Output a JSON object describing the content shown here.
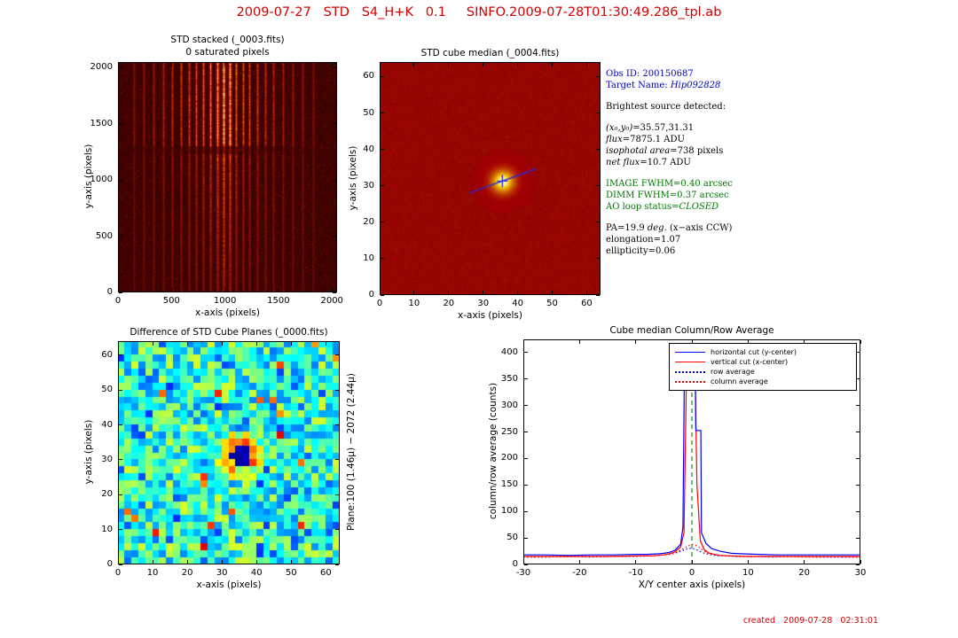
{
  "page": {
    "title": "2009-07-27   STD   S4_H+K   0.1     SINFO.2009-07-28T01:30:49.286_tpl.ab",
    "footer": "created   2009-07-28   02:31:01",
    "title_color": "#d40000"
  },
  "info_panel": {
    "lines": [
      {
        "color": "#0000bb",
        "segments": [
          {
            "t": "Obs ID: 200150687"
          }
        ]
      },
      {
        "color": "#0000bb",
        "segments": [
          {
            "t": "Target Name: "
          },
          {
            "t": "Hip092828",
            "i": true
          }
        ]
      },
      {
        "segments": []
      },
      {
        "color": "#000000",
        "segments": [
          {
            "t": "Brightest source detected:"
          }
        ]
      },
      {
        "segments": []
      },
      {
        "color": "#000000",
        "segments": [
          {
            "t": "(x₀,y₀)",
            "i": true
          },
          {
            "t": "=35.57,31.31"
          }
        ]
      },
      {
        "color": "#000000",
        "segments": [
          {
            "t": "flux",
            "i": true
          },
          {
            "t": "=7875.1 ADU"
          }
        ]
      },
      {
        "color": "#000000",
        "segments": [
          {
            "t": "isophotal area",
            "i": true
          },
          {
            "t": "=738 pixels"
          }
        ]
      },
      {
        "color": "#000000",
        "segments": [
          {
            "t": "net flux",
            "i": true
          },
          {
            "t": "=10.7 ADU"
          }
        ]
      },
      {
        "segments": []
      },
      {
        "color": "#007700",
        "segments": [
          {
            "t": "IMAGE FWHM=0.40 arcsec"
          }
        ]
      },
      {
        "color": "#007700",
        "segments": [
          {
            "t": "DIMM FWHM=0.37 arcsec"
          }
        ]
      },
      {
        "color": "#007700",
        "segments": [
          {
            "t": "AO loop status="
          },
          {
            "t": "CLOSED",
            "i": true
          }
        ]
      },
      {
        "segments": []
      },
      {
        "color": "#000000",
        "segments": [
          {
            "t": "PA=19.9 "
          },
          {
            "t": "deg.",
            "i": true
          },
          {
            "t": " (x−axis CCW)"
          }
        ]
      },
      {
        "color": "#000000",
        "segments": [
          {
            "t": "elongation=1.07"
          }
        ]
      },
      {
        "color": "#000000",
        "segments": [
          {
            "t": "ellipticity=0.06"
          }
        ]
      }
    ]
  },
  "chart_data": [
    {
      "id": "std_stacked",
      "type": "heatmap",
      "title": "STD stacked (_0003.fits)",
      "subtitle": "0 saturated pixels",
      "xlabel": "x-axis (pixels)",
      "ylabel": "y-axis (pixels)",
      "xlim": [
        0,
        2048
      ],
      "ylim": [
        0,
        2048
      ],
      "xticks": [
        0,
        500,
        1000,
        1500,
        2000
      ],
      "yticks": [
        0,
        500,
        1000,
        1500,
        2000
      ],
      "colormap": "hot (dark red background, bright vertical spectral streaks)",
      "streaks": [
        {
          "x": 150,
          "i": 0.2
        },
        {
          "x": 240,
          "i": 0.25
        },
        {
          "x": 330,
          "i": 0.3
        },
        {
          "x": 420,
          "i": 0.35
        },
        {
          "x": 505,
          "i": 0.4
        },
        {
          "x": 585,
          "i": 0.45
        },
        {
          "x": 660,
          "i": 0.5
        },
        {
          "x": 730,
          "i": 0.55
        },
        {
          "x": 800,
          "i": 0.62
        },
        {
          "x": 865,
          "i": 0.72
        },
        {
          "x": 925,
          "i": 0.85
        },
        {
          "x": 985,
          "i": 1.0
        },
        {
          "x": 1045,
          "i": 0.9
        },
        {
          "x": 1105,
          "i": 0.65
        },
        {
          "x": 1165,
          "i": 0.58
        },
        {
          "x": 1230,
          "i": 0.52
        },
        {
          "x": 1300,
          "i": 0.47
        },
        {
          "x": 1375,
          "i": 0.42
        },
        {
          "x": 1455,
          "i": 0.38
        },
        {
          "x": 1540,
          "i": 0.33
        },
        {
          "x": 1630,
          "i": 0.28
        },
        {
          "x": 1725,
          "i": 0.24
        },
        {
          "x": 1825,
          "i": 0.2
        }
      ]
    },
    {
      "id": "cube_median",
      "type": "heatmap",
      "title": "STD cube median (_0004.fits)",
      "xlabel": "x-axis (pixels)",
      "ylabel": "y-axis (pixels)",
      "xlim": [
        0,
        64
      ],
      "ylim": [
        0,
        64
      ],
      "xticks": [
        0,
        10,
        20,
        30,
        40,
        50,
        60
      ],
      "yticks": [
        0,
        10,
        20,
        30,
        40,
        50,
        60
      ],
      "colormap": "hot (red background, bright PSF spot)",
      "source": {
        "x": 35.57,
        "y": 31.31,
        "fwhm_arcsec": 0.4,
        "pa_deg": 19.9,
        "flux_adu": 7875.1
      },
      "marker_color": "#2b2bd0"
    },
    {
      "id": "cube_plane_difference",
      "type": "heatmap",
      "title": "Difference of STD Cube Planes (_0000.fits)",
      "right_label": "Plane:100 (1.46μ) −  2072 (2.44μ)",
      "xlabel": "x-axis (pixels)",
      "ylabel": "y-axis (pixels)",
      "xlim": [
        0,
        64
      ],
      "ylim": [
        0,
        64
      ],
      "xticks": [
        0,
        10,
        20,
        30,
        40,
        50,
        60
      ],
      "yticks": [
        0,
        10,
        20,
        30,
        40,
        50,
        60
      ],
      "colormap": "jet (blue/cyan noise blocks, dark spot at source)",
      "dark_spot": {
        "x": 35.6,
        "y": 31.3
      }
    },
    {
      "id": "cube_median_profiles",
      "type": "line",
      "title": "Cube median Column/Row Average",
      "xlabel": "X/Y center axis (pixels)",
      "ylabel": "column/row average (counts)",
      "xlim": [
        -30,
        30
      ],
      "ylim": [
        0,
        425
      ],
      "xticks": [
        -30,
        -20,
        -10,
        0,
        10,
        20,
        30
      ],
      "yticks": [
        0,
        50,
        100,
        150,
        200,
        250,
        300,
        350,
        400
      ],
      "legend_position": "upper right",
      "vline": {
        "x": 0,
        "color": "#008000",
        "style": "dashed",
        "ymax": 412
      },
      "series": [
        {
          "name": "horizontal cut (y-center)",
          "color": "#0000ff",
          "style": "solid",
          "points": [
            [
              -30,
              18
            ],
            [
              -26,
              18
            ],
            [
              -22,
              17
            ],
            [
              -18,
              18
            ],
            [
              -14,
              18
            ],
            [
              -10,
              19
            ],
            [
              -8,
              19
            ],
            [
              -6,
              20
            ],
            [
              -5,
              21
            ],
            [
              -4,
              23
            ],
            [
              -3,
              27
            ],
            [
              -2,
              38
            ],
            [
              -1.6,
              70
            ],
            [
              -1.3,
              408
            ],
            [
              0.6,
              408
            ],
            [
              0.7,
              253
            ],
            [
              1.6,
              253
            ],
            [
              1.7,
              60
            ],
            [
              2.5,
              40
            ],
            [
              3.5,
              30
            ],
            [
              5,
              25
            ],
            [
              7,
              21
            ],
            [
              9,
              20
            ],
            [
              12,
              19
            ],
            [
              15,
              18
            ],
            [
              20,
              18
            ],
            [
              25,
              18
            ],
            [
              30,
              18
            ]
          ]
        },
        {
          "name": "vertical cut (x-center)",
          "color": "#ff0000",
          "style": "solid",
          "points": [
            [
              -30,
              15
            ],
            [
              -25,
              15
            ],
            [
              -20,
              15
            ],
            [
              -15,
              15
            ],
            [
              -10,
              16
            ],
            [
              -7,
              16
            ],
            [
              -5,
              18
            ],
            [
              -4,
              20
            ],
            [
              -3,
              24
            ],
            [
              -2,
              33
            ],
            [
              -1.4,
              60
            ],
            [
              -0.9,
              400
            ],
            [
              0.5,
              400
            ],
            [
              0.9,
              150
            ],
            [
              1.5,
              45
            ],
            [
              2.2,
              28
            ],
            [
              3,
              22
            ],
            [
              4,
              19
            ],
            [
              5,
              17
            ],
            [
              7,
              16
            ],
            [
              10,
              15
            ],
            [
              15,
              15
            ],
            [
              20,
              15
            ],
            [
              25,
              15
            ],
            [
              30,
              15
            ]
          ]
        },
        {
          "name": "row average",
          "color": "#0000ff",
          "style": "dotted",
          "points": [
            [
              -30,
              14
            ],
            [
              -26,
              14
            ],
            [
              -22,
              15
            ],
            [
              -18,
              14
            ],
            [
              -14,
              15
            ],
            [
              -11,
              15
            ],
            [
              -8,
              16
            ],
            [
              -6,
              17
            ],
            [
              -4,
              19
            ],
            [
              -3,
              21
            ],
            [
              -2,
              25
            ],
            [
              -1,
              29
            ],
            [
              0,
              31
            ],
            [
              1,
              27
            ],
            [
              2,
              22
            ],
            [
              3,
              19
            ],
            [
              4,
              17
            ],
            [
              6,
              16
            ],
            [
              8,
              15
            ],
            [
              11,
              15
            ],
            [
              14,
              14
            ],
            [
              18,
              15
            ],
            [
              22,
              14
            ],
            [
              26,
              14
            ],
            [
              30,
              14
            ]
          ]
        },
        {
          "name": "column average",
          "color": "#ff0000",
          "style": "dotted",
          "points": [
            [
              -30,
              14
            ],
            [
              -26,
              14
            ],
            [
              -22,
              15
            ],
            [
              -18,
              15
            ],
            [
              -14,
              15
            ],
            [
              -10,
              15
            ],
            [
              -8,
              16
            ],
            [
              -6,
              17
            ],
            [
              -5,
              18
            ],
            [
              -4,
              19
            ],
            [
              -3,
              22
            ],
            [
              -2,
              27
            ],
            [
              -1,
              33
            ],
            [
              0,
              38
            ],
            [
              1,
              35
            ],
            [
              2,
              26
            ],
            [
              3,
              21
            ],
            [
              4,
              18
            ],
            [
              5,
              17
            ],
            [
              7,
              16
            ],
            [
              9,
              15
            ],
            [
              12,
              15
            ],
            [
              16,
              15
            ],
            [
              20,
              14
            ],
            [
              25,
              14
            ],
            [
              30,
              14
            ]
          ]
        }
      ]
    }
  ]
}
